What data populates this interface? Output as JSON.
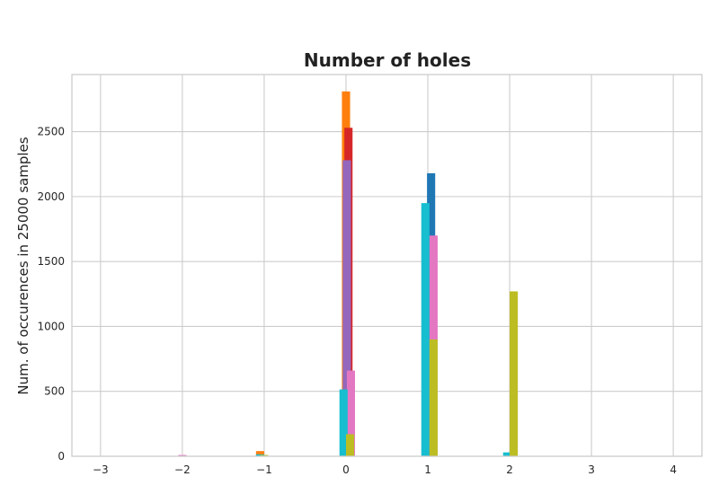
{
  "chart_data": {
    "type": "bar",
    "title": "Number of holes",
    "xlabel": "",
    "ylabel": "Num. of occurences in 25000 samples",
    "xlim": [
      -3.35,
      4.35
    ],
    "ylim": [
      0,
      2940
    ],
    "xticks": [
      -3,
      -2,
      -1,
      0,
      1,
      2,
      3,
      4
    ],
    "yticks": [
      0,
      500,
      1000,
      1500,
      2000,
      2500
    ],
    "grid": true,
    "legend": "none",
    "bin_width": 0.1,
    "bars": [
      {
        "x": -2.0,
        "y": 10,
        "color": "#e377c2"
      },
      {
        "x": -1.05,
        "y": 40,
        "color": "#ff7f0e"
      },
      {
        "x": -1.05,
        "y": 15,
        "color": "#17becf"
      },
      {
        "x": -1.0,
        "y": 10,
        "color": "#bcbd22"
      },
      {
        "x": 0.0,
        "y": 2810,
        "color": "#ff7f0e"
      },
      {
        "x": 0.03,
        "y": 2530,
        "color": "#d62728"
      },
      {
        "x": 0.01,
        "y": 2280,
        "color": "#9467bd"
      },
      {
        "x": 0.06,
        "y": 660,
        "color": "#e377c2"
      },
      {
        "x": -0.03,
        "y": 515,
        "color": "#17becf"
      },
      {
        "x": 0.05,
        "y": 170,
        "color": "#bcbd22"
      },
      {
        "x": 1.04,
        "y": 2180,
        "color": "#1f77b4"
      },
      {
        "x": 0.97,
        "y": 1950,
        "color": "#17becf"
      },
      {
        "x": 1.07,
        "y": 1700,
        "color": "#e377c2"
      },
      {
        "x": 1.07,
        "y": 900,
        "color": "#bcbd22"
      },
      {
        "x": 1.97,
        "y": 30,
        "color": "#17becf"
      },
      {
        "x": 2.05,
        "y": 1270,
        "color": "#bcbd22"
      }
    ]
  }
}
